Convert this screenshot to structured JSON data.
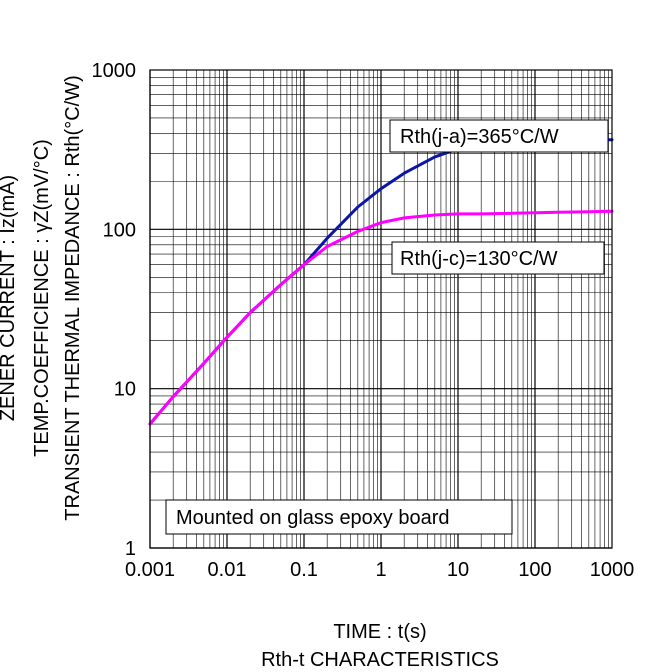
{
  "chart_data": {
    "type": "line",
    "title": "Rth-t CHARACTERISTICS",
    "xlabel": "TIME : t(s)",
    "ylabel_lines": [
      "TEMP.COEFFICIENCE : γZ(mV/°C)",
      "TRANSIENT THERMAL IMPEDANCE : Rth(°C/W)"
    ],
    "ylabel_cut": "ZENER CURRENT : Iz(mA)",
    "x_scale": "log",
    "y_scale": "log",
    "xlim": [
      0.001,
      1000
    ],
    "ylim": [
      1,
      1000
    ],
    "x_ticks": [
      "0.001",
      "0.01",
      "0.1",
      "1",
      "10",
      "100",
      "1000"
    ],
    "y_ticks": [
      "1",
      "10",
      "100",
      "1000"
    ],
    "grid": true,
    "annotation": "Mounted on glass epoxy board",
    "series": [
      {
        "name": "Rth(j-a)=365°C/W",
        "color": "#0b16a8",
        "x": [
          0.001,
          0.002,
          0.005,
          0.01,
          0.02,
          0.05,
          0.1,
          0.2,
          0.5,
          1,
          2,
          5,
          10,
          20,
          50,
          100,
          200,
          500,
          1000
        ],
        "y": [
          6,
          8.9,
          14.4,
          21,
          30,
          45,
          60,
          88,
          138,
          180,
          225,
          285,
          320,
          335,
          347,
          355,
          360,
          364,
          365
        ]
      },
      {
        "name": "Rth(j-c)=130°C/W",
        "color": "#ff00ff",
        "x": [
          0.001,
          0.002,
          0.005,
          0.01,
          0.02,
          0.05,
          0.1,
          0.2,
          0.5,
          1,
          2,
          5,
          10,
          20,
          50,
          100,
          200,
          500,
          1000
        ],
        "y": [
          6,
          8.9,
          14.4,
          21,
          30,
          45,
          60,
          78,
          97,
          110,
          118,
          123,
          125,
          125,
          126,
          127,
          128,
          129,
          130
        ]
      }
    ]
  }
}
